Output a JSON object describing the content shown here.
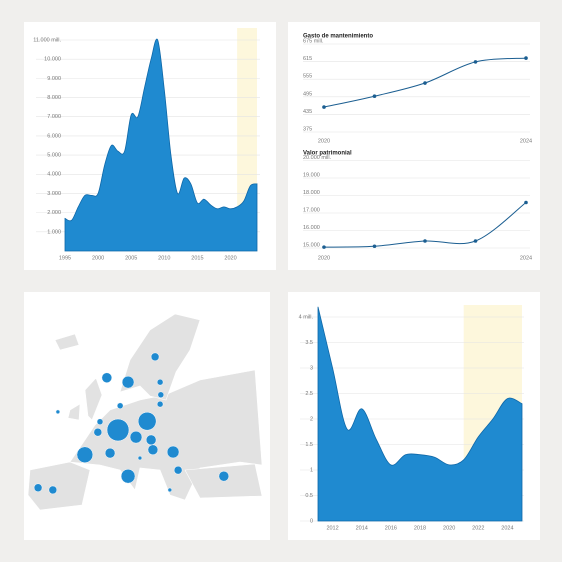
{
  "chart_data": [
    {
      "type": "area",
      "color": "#1f8ad0",
      "highlight_range": [
        2021,
        2024
      ],
      "x": [
        1995,
        1996,
        1997,
        1998,
        1999,
        2000,
        2001,
        2002,
        2003,
        2004,
        2005,
        2006,
        2007,
        2008,
        2009,
        2010,
        2011,
        2012,
        2013,
        2014,
        2015,
        2016,
        2017,
        2018,
        2019,
        2020,
        2021,
        2022,
        2023,
        2024
      ],
      "values": [
        1700,
        1600,
        2300,
        2900,
        2900,
        3000,
        4500,
        5500,
        5200,
        5200,
        7100,
        7000,
        8500,
        10000,
        11000,
        8400,
        5000,
        3000,
        3800,
        3500,
        2500,
        2700,
        2400,
        2200,
        2300,
        2200,
        2300,
        2600,
        3400,
        3500
      ],
      "xlim": [
        1995,
        2024
      ],
      "xticks": [
        1995,
        2000,
        2005,
        2010,
        2015,
        2020
      ],
      "ylim": [
        0,
        11000
      ],
      "yticks": [
        {
          "value": 1000,
          "label": "1.000"
        },
        {
          "value": 2000,
          "label": "2.000"
        },
        {
          "value": 3000,
          "label": "3.000"
        },
        {
          "value": 4000,
          "label": "4.000"
        },
        {
          "value": 5000,
          "label": "5.000"
        },
        {
          "value": 6000,
          "label": "6.000"
        },
        {
          "value": 7000,
          "label": "7.000"
        },
        {
          "value": 8000,
          "label": "8.000"
        },
        {
          "value": 9000,
          "label": "9.000"
        },
        {
          "value": 10000,
          "label": "10.000"
        },
        {
          "value": 11000,
          "label": "11.000 mill."
        }
      ],
      "grid": true
    },
    {
      "type": "line",
      "title": "Gasto de mantenimiento",
      "color": "#1b5e91",
      "x": [
        2020,
        2021,
        2022,
        2023,
        2024
      ],
      "values": [
        460,
        497,
        542,
        614,
        627
      ],
      "xlim": [
        2020,
        2024
      ],
      "xticks": [
        2020,
        2024
      ],
      "ylim": [
        375,
        675
      ],
      "yticks": [
        375,
        435,
        495,
        555,
        615,
        {
          "value": 675,
          "label": "675 mill."
        }
      ],
      "grid": true
    },
    {
      "type": "line",
      "title": "Valor patrimonial",
      "color": "#1b5e91",
      "x": [
        2020,
        2021,
        2022,
        2023,
        2024
      ],
      "values": [
        15050,
        15100,
        15400,
        15400,
        17600
      ],
      "xlim": [
        2020,
        2024
      ],
      "xticks": [
        2020,
        2024
      ],
      "ylim": [
        15000,
        20000
      ],
      "yticks": [
        {
          "value": 15000,
          "label": "15.000"
        },
        {
          "value": 16000,
          "label": "16.000"
        },
        {
          "value": 17000,
          "label": "17.000"
        },
        {
          "value": 18000,
          "label": "18.000"
        },
        {
          "value": 19000,
          "label": "19.000"
        },
        {
          "value": 20000,
          "label": "20.000 mill."
        }
      ],
      "grid": true
    },
    {
      "type": "bubble_map",
      "color": "#1f8ad0",
      "lon": [
        5.0,
        13.1,
        -4.2,
        7.8,
        20.3,
        10.0,
        2.8,
        14.2,
        14.7,
        7.8,
        1.9,
        15.3,
        34.4,
        21.7,
        -13.1,
        -17.2,
        -0.6,
        0.0,
        16.7,
        16.9,
        16.7,
        5.6,
        19.4,
        11.1,
        -11.7
      ],
      "lat": [
        50.0,
        51.6,
        45.5,
        41.6,
        46.0,
        48.7,
        45.8,
        48.2,
        46.4,
        58.7,
        59.5,
        63.3,
        41.6,
        42.7,
        39.1,
        39.5,
        49.6,
        51.5,
        58.7,
        56.4,
        54.7,
        54.4,
        39.1,
        44.9,
        53.3
      ],
      "values": [
        121,
        81,
        64,
        49,
        36,
        36,
        25,
        25,
        25,
        36,
        25,
        16,
        25,
        16,
        16,
        16,
        16,
        9,
        9,
        9,
        9,
        9,
        4,
        4,
        4
      ]
    },
    {
      "type": "area",
      "color": "#1f8ad0",
      "highlight_range": [
        2021,
        2025
      ],
      "x": [
        2011,
        2012,
        2013,
        2014,
        2015,
        2016,
        2017,
        2018,
        2019,
        2020,
        2021,
        2022,
        2023,
        2024,
        2025
      ],
      "values": [
        4.2,
        3.0,
        1.8,
        2.2,
        1.6,
        1.1,
        1.3,
        1.3,
        1.25,
        1.1,
        1.2,
        1.65,
        2.0,
        2.4,
        2.3
      ],
      "xlim": [
        2011,
        2025
      ],
      "xticks": [
        2012,
        2014,
        2016,
        2018,
        2020,
        2022,
        2024
      ],
      "ylim": [
        0,
        4
      ],
      "yticks": [
        0,
        0.5,
        1,
        1.5,
        2,
        2.5,
        3,
        3.5,
        {
          "value": 4,
          "label": "4 mill."
        }
      ],
      "grid": true
    }
  ]
}
